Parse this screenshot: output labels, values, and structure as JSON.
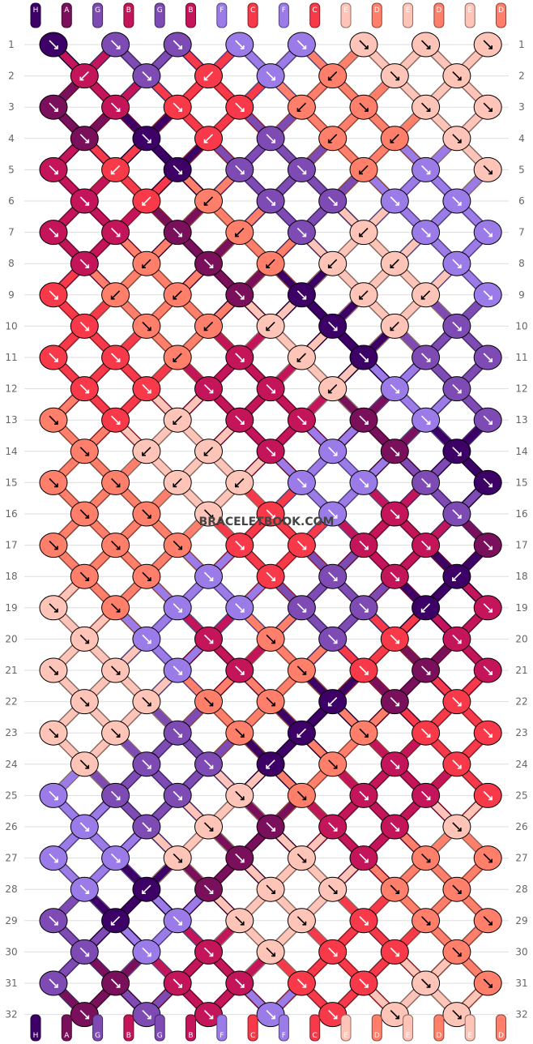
{
  "watermark": "BRACELETBOOK.COM",
  "palette": {
    "H": "#3d0066",
    "A": "#7a0f5c",
    "G": "#7d4bb3",
    "B": "#c4145a",
    "F": "#9b7be8",
    "C": "#f7394a",
    "E": "#ffc4b8",
    "D": "#ff7f6a"
  },
  "strands_top": [
    "H",
    "A",
    "G",
    "B",
    "G",
    "B",
    "F",
    "C",
    "F",
    "C",
    "E",
    "D",
    "E",
    "D",
    "E",
    "D"
  ],
  "strands_bottom": [
    "H",
    "A",
    "G",
    "B",
    "G",
    "B",
    "F",
    "C",
    "F",
    "C",
    "E",
    "D",
    "E",
    "D",
    "E",
    "D"
  ],
  "rows": [
    "1",
    "2",
    "3",
    "4",
    "5",
    "6",
    "7",
    "8",
    "9",
    "10",
    "11",
    "12",
    "13",
    "14",
    "15",
    "16",
    "17",
    "18",
    "19",
    "20",
    "21",
    "22",
    "23",
    "24",
    "25",
    "26",
    "27",
    "28",
    "29",
    "30",
    "31",
    "32"
  ],
  "knots": [
    [
      "H:R",
      "G:R",
      "G:R",
      "F:R",
      "F:R",
      "E:R",
      "E:R",
      "E:R"
    ],
    [
      "B:L",
      "G:R",
      "C:L",
      "F:R",
      "D:L",
      "E:R",
      "E:R"
    ],
    [
      "A:R",
      "B:R",
      "C:R",
      "C:R",
      "D:L",
      "D:R",
      "E:R",
      "E:R"
    ],
    [
      "A:R",
      "H:R",
      "C:L",
      "G:R",
      "D:L",
      "D:L",
      "E:R"
    ],
    [
      "B:R",
      "C:L",
      "H:R",
      "G:R",
      "G:R",
      "D:L",
      "F:R",
      "E:R"
    ],
    [
      "B:R",
      "C:L",
      "D:L",
      "G:R",
      "G:R",
      "F:R",
      "F:R"
    ],
    [
      "B:R",
      "B:R",
      "A:R",
      "D:L",
      "G:R",
      "E:L",
      "F:R",
      "F:R"
    ],
    [
      "B:R",
      "D:L",
      "A:R",
      "D:L",
      "E:L",
      "E:L",
      "F:R"
    ],
    [
      "C:R",
      "D:L",
      "D:L",
      "A:R",
      "H:R",
      "E:L",
      "E:L",
      "F:R"
    ],
    [
      "C:R",
      "D:R",
      "D:L",
      "E:L",
      "H:R",
      "E:L",
      "G:R"
    ],
    [
      "C:R",
      "C:R",
      "D:L",
      "B:R",
      "E:L",
      "H:R",
      "G:R",
      "G:R"
    ],
    [
      "C:R",
      "C:R",
      "B:R",
      "B:R",
      "E:L",
      "F:R",
      "G:R"
    ],
    [
      "D:R",
      "C:R",
      "E:L",
      "B:R",
      "B:R",
      "A:R",
      "F:R",
      "G:R"
    ],
    [
      "D:R",
      "E:L",
      "E:L",
      "B:R",
      "F:R",
      "A:R",
      "H:R"
    ],
    [
      "D:R",
      "D:R",
      "E:L",
      "E:L",
      "F:R",
      "F:R",
      "G:R",
      "H:R"
    ],
    [
      "D:R",
      "D:R",
      "E:R",
      "C:R",
      "F:R",
      "B:R",
      "G:R"
    ],
    [
      "D:R",
      "D:R",
      "D:R",
      "C:R",
      "C:R",
      "B:R",
      "B:R",
      "A:R"
    ],
    [
      "D:R",
      "D:R",
      "F:R",
      "C:R",
      "G:R",
      "B:R",
      "H:L"
    ],
    [
      "E:R",
      "D:R",
      "F:R",
      "F:R",
      "G:R",
      "G:R",
      "H:L",
      "B:R"
    ],
    [
      "E:R",
      "F:R",
      "B:R",
      "D:R",
      "G:R",
      "C:R",
      "B:R"
    ],
    [
      "E:R",
      "E:R",
      "F:R",
      "B:R",
      "D:R",
      "C:R",
      "A:R",
      "B:R"
    ],
    [
      "E:R",
      "E:R",
      "D:R",
      "D:R",
      "H:L",
      "A:R",
      "C:R"
    ],
    [
      "E:R",
      "E:R",
      "G:R",
      "D:R",
      "H:L",
      "D:R",
      "C:R",
      "C:R"
    ],
    [
      "E:R",
      "G:R",
      "G:R",
      "H:L",
      "D:R",
      "B:R",
      "C:R"
    ],
    [
      "F:R",
      "G:R",
      "G:R",
      "E:R",
      "D:R",
      "B:R",
      "B:R",
      "C:R"
    ],
    [
      "F:R",
      "G:R",
      "E:R",
      "A:R",
      "B:R",
      "B:R",
      "E:R"
    ],
    [
      "F:R",
      "F:R",
      "E:R",
      "A:R",
      "E:R",
      "B:R",
      "D:R",
      "D:R"
    ],
    [
      "F:R",
      "H:L",
      "A:R",
      "E:R",
      "E:R",
      "D:R",
      "D:R"
    ],
    [
      "G:R",
      "H:L",
      "F:R",
      "E:R",
      "E:R",
      "C:R",
      "D:R",
      "D:R"
    ],
    [
      "G:R",
      "F:R",
      "B:R",
      "E:R",
      "C:R",
      "C:R",
      "D:R"
    ],
    [
      "G:R",
      "A:R",
      "B:R",
      "B:R",
      "C:R",
      "C:R",
      "E:R",
      "D:R"
    ],
    [
      "A:R",
      "G:R",
      "B:R",
      "F:R",
      "C:R",
      "E:R",
      "E:R"
    ]
  ]
}
